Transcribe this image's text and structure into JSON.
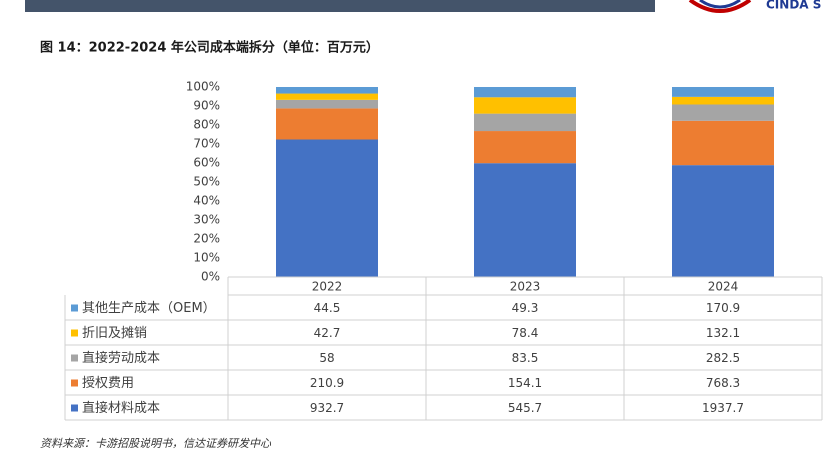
{
  "header": {
    "logo_text": "CINDA S"
  },
  "chart_data": {
    "type": "bar",
    "stacking": "percent",
    "title": "图 14：2022-2024 年公司成本端拆分（单位：百万元）",
    "categories": [
      "2022",
      "2023",
      "2024"
    ],
    "series": [
      {
        "name": "直接材料成本",
        "color": "#4472c4",
        "values": [
          932.7,
          545.7,
          1937.7
        ]
      },
      {
        "name": "授权费用",
        "color": "#ed7d31",
        "values": [
          210.9,
          154.1,
          768.3
        ]
      },
      {
        "name": "直接劳动成本",
        "color": "#a5a5a5",
        "values": [
          58,
          83.5,
          282.5
        ]
      },
      {
        "name": "折旧及摊销",
        "color": "#ffc000",
        "values": [
          42.7,
          78.4,
          132.1
        ]
      },
      {
        "name": "其他生产成本（OEM）",
        "color": "#5b9bd5",
        "values": [
          44.5,
          49.3,
          170.9
        ]
      }
    ],
    "ylim": [
      0,
      100
    ],
    "yticks": [
      {
        "value": 0,
        "label": "0%"
      },
      {
        "value": 10,
        "label": "10%"
      },
      {
        "value": 20,
        "label": "20%"
      },
      {
        "value": 30,
        "label": "30%"
      },
      {
        "value": 40,
        "label": "40%"
      },
      {
        "value": 50,
        "label": "50%"
      },
      {
        "value": 60,
        "label": "60%"
      },
      {
        "value": 70,
        "label": "70%"
      },
      {
        "value": 80,
        "label": "80%"
      },
      {
        "value": 90,
        "label": "90%"
      },
      {
        "value": 100,
        "label": "100%"
      }
    ],
    "grid": false,
    "source": "资料来源：卡游招股说明书，信达证券研发中心"
  }
}
